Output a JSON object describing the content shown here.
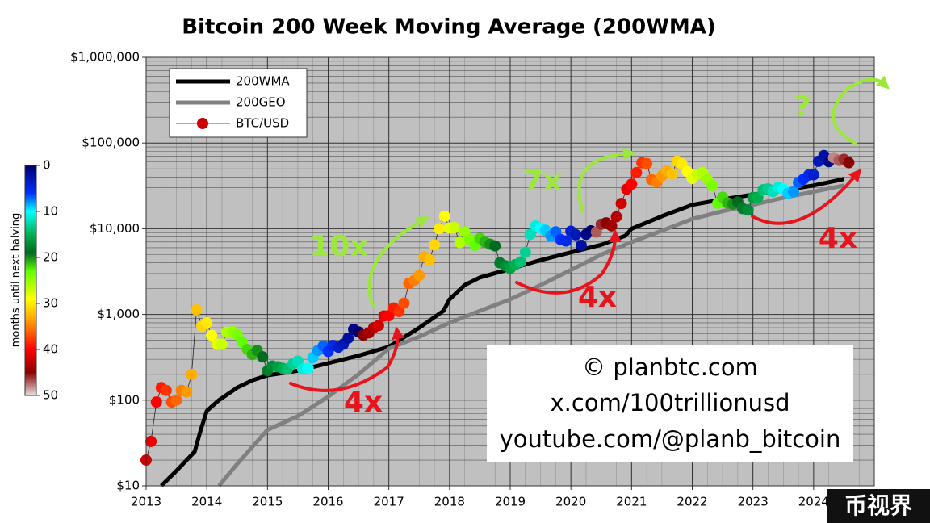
{
  "chart_data": {
    "type": "line",
    "title": "Bitcoin 200 Week Moving Average (200WMA)",
    "xlim": [
      2013,
      2025
    ],
    "xticks": [
      2013,
      2014,
      2015,
      2016,
      2017,
      2018,
      2019,
      2020,
      2021,
      2022,
      2023,
      2024
    ],
    "ylim": [
      10,
      1000000
    ],
    "log_y": true,
    "yticks": [
      {
        "value": 10,
        "label": "$10"
      },
      {
        "value": 100,
        "label": "$100"
      },
      {
        "value": 1000,
        "label": "$1,000"
      },
      {
        "value": 10000,
        "label": "$10,000"
      },
      {
        "value": 100000,
        "label": "$100,000"
      },
      {
        "value": 1000000,
        "label": "$1,000,000"
      }
    ],
    "grid": true,
    "legend": "upper left",
    "series": [
      {
        "name": "200WMA",
        "color": "#000000",
        "x": [
          2013.25,
          2013.5,
          2013.8,
          2013.9,
          2014.0,
          2014.2,
          2014.5,
          2014.75,
          2015.0,
          2015.5,
          2016.0,
          2016.5,
          2017.0,
          2017.5,
          2017.9,
          2018.0,
          2018.25,
          2018.5,
          2019.0,
          2019.5,
          2020.0,
          2020.5,
          2020.9,
          2021.0,
          2021.5,
          2022.0,
          2022.5,
          2023.0,
          2023.5,
          2024.0,
          2024.5
        ],
        "values": [
          10,
          15,
          25,
          45,
          75,
          100,
          140,
          170,
          195,
          220,
          270,
          330,
          420,
          700,
          1100,
          1500,
          2200,
          2700,
          3400,
          4300,
          5300,
          6500,
          8300,
          10000,
          14000,
          19000,
          22000,
          25000,
          28000,
          32000,
          38000
        ]
      },
      {
        "name": "200GEO",
        "color": "#808080",
        "x": [
          2014.2,
          2014.5,
          2015.0,
          2015.5,
          2016.0,
          2016.5,
          2017.0,
          2017.5,
          2018.0,
          2018.5,
          2019.0,
          2019.5,
          2020.0,
          2020.5,
          2021.0,
          2021.5,
          2022.0,
          2022.5,
          2023.0,
          2023.5,
          2024.0,
          2024.5
        ],
        "values": [
          10,
          18,
          45,
          65,
          110,
          200,
          400,
          550,
          800,
          1100,
          1500,
          2200,
          3300,
          5000,
          7000,
          9500,
          13000,
          16000,
          19000,
          23000,
          27000,
          32000
        ]
      },
      {
        "name": "BTC/USD",
        "color": "#cc0000",
        "markers": true,
        "x": [
          2013.0,
          2013.08,
          2013.17,
          2013.25,
          2013.33,
          2013.42,
          2013.5,
          2013.58,
          2013.67,
          2013.75,
          2013.83,
          2013.92,
          2014.0,
          2014.08,
          2014.17,
          2014.25,
          2014.33,
          2014.42,
          2014.5,
          2014.58,
          2014.67,
          2014.75,
          2014.83,
          2014.92,
          2015.0,
          2015.08,
          2015.17,
          2015.25,
          2015.33,
          2015.42,
          2015.5,
          2015.58,
          2015.67,
          2015.75,
          2015.83,
          2015.92,
          2016.0,
          2016.08,
          2016.17,
          2016.25,
          2016.33,
          2016.42,
          2016.5,
          2016.58,
          2016.67,
          2016.75,
          2016.83,
          2016.92,
          2017.0,
          2017.08,
          2017.17,
          2017.25,
          2017.33,
          2017.42,
          2017.5,
          2017.58,
          2017.67,
          2017.75,
          2017.83,
          2017.92,
          2018.0,
          2018.08,
          2018.17,
          2018.25,
          2018.33,
          2018.42,
          2018.5,
          2018.58,
          2018.67,
          2018.75,
          2018.83,
          2018.92,
          2019.0,
          2019.08,
          2019.17,
          2019.25,
          2019.33,
          2019.42,
          2019.5,
          2019.58,
          2019.67,
          2019.75,
          2019.83,
          2019.92,
          2020.0,
          2020.08,
          2020.17,
          2020.25,
          2020.33,
          2020.42,
          2020.5,
          2020.58,
          2020.67,
          2020.75,
          2020.83,
          2020.92,
          2021.0,
          2021.08,
          2021.17,
          2021.25,
          2021.33,
          2021.42,
          2021.5,
          2021.58,
          2021.67,
          2021.75,
          2021.83,
          2021.92,
          2022.0,
          2022.08,
          2022.17,
          2022.25,
          2022.33,
          2022.42,
          2022.5,
          2022.58,
          2022.67,
          2022.75,
          2022.83,
          2022.92,
          2023.0,
          2023.08,
          2023.17,
          2023.25,
          2023.33,
          2023.42,
          2023.5,
          2023.58,
          2023.67,
          2023.75,
          2023.83,
          2023.92,
          2024.0,
          2024.08,
          2024.17,
          2024.25,
          2024.33,
          2024.42,
          2024.5,
          2024.58
        ],
        "values": [
          20,
          33,
          95,
          140,
          130,
          95,
          100,
          130,
          125,
          200,
          1130,
          730,
          800,
          570,
          450,
          450,
          620,
          630,
          580,
          480,
          390,
          340,
          380,
          320,
          220,
          250,
          245,
          235,
          230,
          265,
          285,
          230,
          236,
          315,
          380,
          430,
          370,
          435,
          415,
          450,
          530,
          670,
          625,
          575,
          610,
          700,
          740,
          960,
          970,
          1190,
          1080,
          1350,
          2300,
          2500,
          2850,
          4700,
          4340,
          6470,
          10000,
          14000,
          10200,
          10300,
          6900,
          9200,
          7500,
          6400,
          7700,
          7000,
          6600,
          6300,
          4000,
          3700,
          3450,
          3800,
          4100,
          5300,
          8600,
          10800,
          10100,
          9600,
          8300,
          9200,
          7500,
          7200,
          9350,
          8500,
          6400,
          8600,
          9450,
          9140,
          11300,
          11700,
          10800,
          13800,
          19700,
          29000,
          33100,
          45100,
          58800,
          57700,
          37300,
          35000,
          41500,
          47100,
          43800,
          61300,
          57000,
          46300,
          38500,
          43200,
          45500,
          37700,
          31800,
          19800,
          23300,
          20000,
          19400,
          20500,
          17200,
          16500,
          23100,
          23100,
          28500,
          29200,
          27200,
          30500,
          29200,
          26000,
          27000,
          34500,
          37700,
          42300,
          42600,
          61100,
          71300,
          60600,
          67500,
          62700,
          64600,
          59000
        ],
        "color_values": [
          42,
          41,
          40,
          39,
          38,
          37,
          36,
          35,
          34,
          33,
          32,
          31,
          30,
          29,
          28,
          27,
          26,
          25,
          24,
          23,
          22,
          21,
          20,
          19,
          18,
          17,
          16,
          15,
          14,
          13,
          12,
          11,
          10,
          9,
          8,
          7,
          6,
          5,
          4,
          3,
          2,
          1,
          0,
          45,
          44,
          43,
          42,
          41,
          40,
          39,
          38,
          37,
          36,
          35,
          34,
          33,
          32,
          31,
          30,
          29,
          28,
          27,
          26,
          25,
          24,
          23,
          22,
          21,
          20,
          19,
          18,
          17,
          16,
          15,
          14,
          13,
          12,
          11,
          10,
          9,
          8,
          7,
          6,
          5,
          4,
          3,
          2,
          1,
          0,
          47,
          46,
          45,
          44,
          43,
          42,
          41,
          40,
          39,
          38,
          37,
          36,
          35,
          34,
          33,
          32,
          31,
          30,
          29,
          28,
          27,
          26,
          25,
          24,
          23,
          22,
          21,
          20,
          19,
          18,
          17,
          16,
          15,
          14,
          13,
          12,
          11,
          10,
          9,
          8,
          7,
          6,
          5,
          4,
          3,
          2,
          1,
          48,
          47,
          46,
          45
        ]
      }
    ],
    "colorbar": {
      "label": "months until next halving",
      "clim": [
        0,
        50
      ],
      "ticks": [
        0,
        10,
        20,
        30,
        40,
        50
      ],
      "colormap": [
        [
          0,
          "#000070"
        ],
        [
          6,
          "#0030ff"
        ],
        [
          10,
          "#00ffff"
        ],
        [
          15,
          "#00b050"
        ],
        [
          19,
          "#006a20"
        ],
        [
          23,
          "#60ff00"
        ],
        [
          29,
          "#ffff00"
        ],
        [
          34,
          "#ff9900"
        ],
        [
          40,
          "#ff0000"
        ],
        [
          45,
          "#8b0000"
        ],
        [
          50,
          "#e0e0e0"
        ]
      ]
    },
    "annotations": [
      {
        "text": "10x",
        "color": "#9be83a"
      },
      {
        "text": "7x",
        "color": "#9be83a"
      },
      {
        "text": "?",
        "color": "#9be83a"
      },
      {
        "text": "4x",
        "color": "#e8141c"
      },
      {
        "text": "4x",
        "color": "#e8141c"
      },
      {
        "text": "4x",
        "color": "#e8141c"
      }
    ],
    "credits": [
      "© planbtc.com",
      "x.com/100trillionusd",
      "youtube.com/@planb_bitcoin"
    ],
    "watermark": "币视界"
  }
}
